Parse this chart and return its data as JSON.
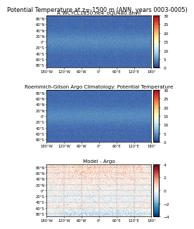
{
  "title_main": "Potential Temperature at z=-1500 m (ANN, years 0003-0005)",
  "panel_titles": [
    "A_WCYCL1850.ne4_oQU480.anvil",
    "Roemmich-Gilson Argo Climatology: Potential Temperature",
    "Model - Argo"
  ],
  "lon_ticks": [
    -180,
    -120,
    -60,
    0,
    60,
    120,
    180
  ],
  "lat_ticks": [
    -80,
    -60,
    -40,
    -20,
    0,
    20,
    40,
    60,
    80
  ],
  "lon_labels": [
    "180°W",
    "120°W",
    "60°W",
    "0°",
    "60°E",
    "120°E",
    "180°E"
  ],
  "lat_labels": [
    "80°S",
    "60°S",
    "40°S",
    "20°S",
    "0°",
    "20°N",
    "40°N",
    "60°N",
    "80°N"
  ],
  "cmap_temp": "RdYlBu_r",
  "cmap_diff": "RdBu_r",
  "vmin_temp": 0,
  "vmax_temp": 30,
  "vmin_diff": -4,
  "vmax_diff": 4,
  "land_color": "#808080",
  "background": "#ffffff",
  "title_fontsize": 6.0,
  "panel_title_fontsize": 5.2,
  "tick_fontsize": 3.8,
  "colorbar_tick_fontsize": 4.2
}
